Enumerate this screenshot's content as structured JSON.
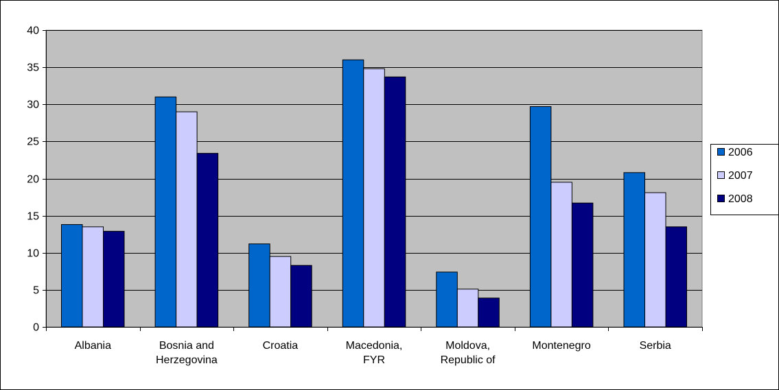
{
  "chart_data": {
    "type": "bar",
    "categories": [
      [
        "Albania"
      ],
      [
        "Bosnia and",
        "Herzegovina"
      ],
      [
        "Croatia"
      ],
      [
        "Macedonia,",
        "FYR"
      ],
      [
        "Moldova,",
        "Republic of"
      ],
      [
        "Montenegro"
      ],
      [
        "Serbia"
      ]
    ],
    "series": [
      {
        "name": "2006",
        "color": "#0066cc",
        "values": [
          13.8,
          31.0,
          11.2,
          36.0,
          7.4,
          29.7,
          20.8
        ]
      },
      {
        "name": "2007",
        "color": "#ccccff",
        "values": [
          13.5,
          29.0,
          9.5,
          34.8,
          5.1,
          19.5,
          18.1
        ]
      },
      {
        "name": "2008",
        "color": "#000080",
        "values": [
          12.9,
          23.4,
          8.3,
          33.7,
          3.9,
          16.7,
          13.5
        ]
      }
    ],
    "ylim": [
      0,
      40
    ],
    "yticks": [
      0,
      5,
      10,
      15,
      20,
      25,
      30,
      35,
      40
    ],
    "grid": true,
    "plot_background": "#c0c0c0",
    "legend_position": "right"
  }
}
